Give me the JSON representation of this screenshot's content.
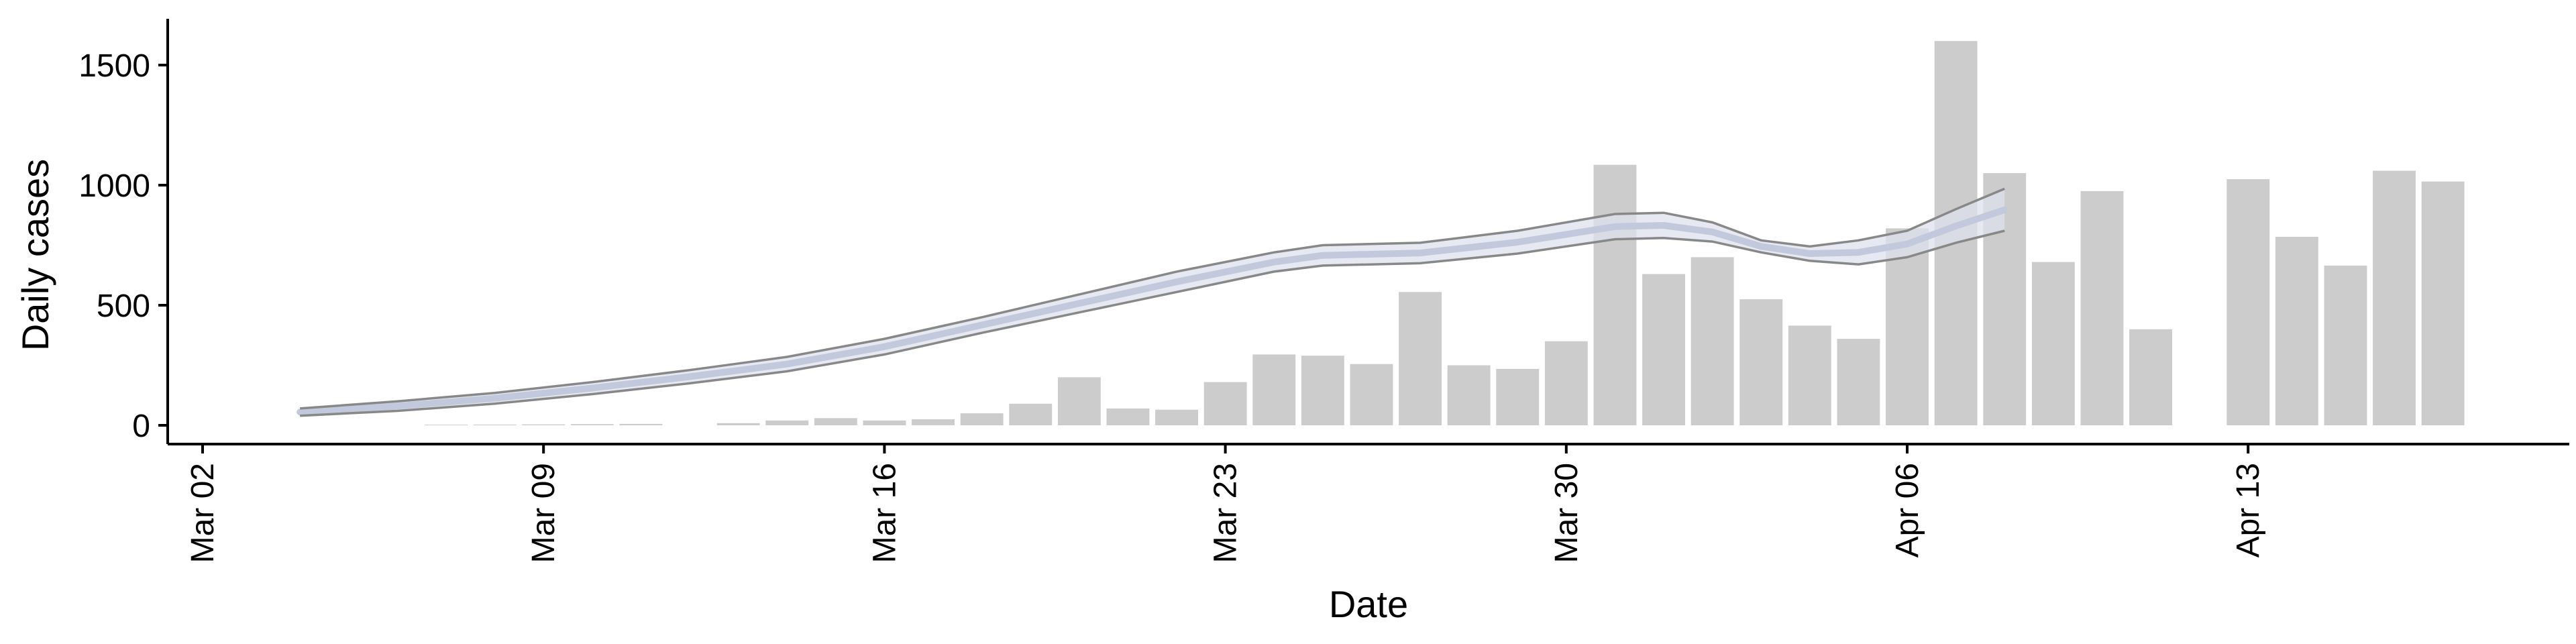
{
  "chart_data": {
    "type": "bar",
    "title": "",
    "xlabel": "Date",
    "ylabel": "Daily cases",
    "x_ticks": [
      "Mar 02",
      "Mar 09",
      "Mar 16",
      "Mar 23",
      "Mar 30",
      "Apr 06",
      "Apr 13"
    ],
    "y_ticks": [
      "0",
      "500",
      "1000",
      "1500"
    ],
    "y_tick_values": [
      0,
      500,
      1000,
      1500
    ],
    "xlim": [
      "2020-03-02",
      "2020-04-17"
    ],
    "ylim": [
      -70,
      1690
    ],
    "grid": false,
    "legend": "none",
    "bars": {
      "color": "#cccccc",
      "dates": [
        "2020-03-07",
        "2020-03-08",
        "2020-03-09",
        "2020-03-10",
        "2020-03-11",
        "2020-03-13",
        "2020-03-14",
        "2020-03-15",
        "2020-03-16",
        "2020-03-17",
        "2020-03-18",
        "2020-03-19",
        "2020-03-20",
        "2020-03-21",
        "2020-03-22",
        "2020-03-23",
        "2020-03-24",
        "2020-03-25",
        "2020-03-26",
        "2020-03-27",
        "2020-03-28",
        "2020-03-29",
        "2020-03-30",
        "2020-03-31",
        "2020-04-01",
        "2020-04-02",
        "2020-04-03",
        "2020-04-04",
        "2020-04-05",
        "2020-04-06",
        "2020-04-07",
        "2020-04-08",
        "2020-04-09",
        "2020-04-10",
        "2020-04-11",
        "2020-04-13",
        "2020-04-14",
        "2020-04-15",
        "2020-04-16",
        "2020-04-17"
      ],
      "values": [
        2,
        3,
        4,
        5,
        6,
        9,
        20,
        30,
        20,
        25,
        50,
        90,
        200,
        70,
        65,
        180,
        295,
        290,
        255,
        555,
        250,
        235,
        350,
        1085,
        630,
        700,
        525,
        415,
        360,
        820,
        1600,
        1050,
        680,
        975,
        400,
        1025,
        785,
        665,
        1060,
        1015
      ]
    },
    "band": {
      "name": "",
      "line_color": "#888888",
      "fill_color": "#dde2ec",
      "center_color": "#c3c9dc",
      "dates": [
        "2020-03-04",
        "2020-03-06",
        "2020-03-08",
        "2020-03-10",
        "2020-03-12",
        "2020-03-14",
        "2020-03-16",
        "2020-03-18",
        "2020-03-20",
        "2020-03-22",
        "2020-03-24",
        "2020-03-25",
        "2020-03-27",
        "2020-03-29",
        "2020-03-31",
        "2020-04-01",
        "2020-04-02",
        "2020-04-03",
        "2020-04-04",
        "2020-04-05",
        "2020-04-06",
        "2020-04-07",
        "2020-04-08"
      ],
      "upper": [
        70,
        100,
        135,
        180,
        230,
        285,
        360,
        450,
        545,
        640,
        720,
        750,
        760,
        810,
        880,
        885,
        845,
        770,
        745,
        770,
        810,
        900,
        985
      ],
      "lower": [
        40,
        60,
        90,
        130,
        175,
        225,
        295,
        385,
        470,
        555,
        640,
        665,
        675,
        715,
        775,
        780,
        765,
        720,
        685,
        670,
        700,
        760,
        810
      ]
    }
  }
}
